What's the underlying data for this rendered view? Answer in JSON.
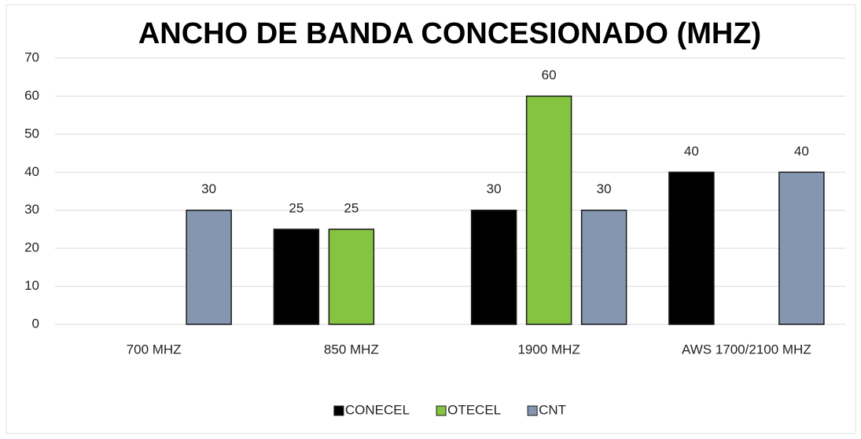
{
  "chart_data": {
    "type": "bar",
    "title": "ANCHO DE BANDA CONCESIONADO (MHZ)",
    "categories": [
      "700 MHZ",
      "850 MHZ",
      "1900 MHZ",
      "AWS 1700/2100 MHZ"
    ],
    "series": [
      {
        "name": "CONECEL",
        "color": "#000000",
        "values": [
          null,
          25,
          30,
          40
        ]
      },
      {
        "name": "OTECEL",
        "color": "#84c441",
        "values": [
          null,
          25,
          60,
          null
        ]
      },
      {
        "name": "CNT",
        "color": "#8496b0",
        "values": [
          30,
          null,
          30,
          40
        ]
      }
    ],
    "ylim": [
      0,
      70
    ],
    "yticks": [
      0,
      10,
      20,
      30,
      40,
      50,
      60,
      70
    ],
    "grid": true,
    "legend": "bottom"
  }
}
